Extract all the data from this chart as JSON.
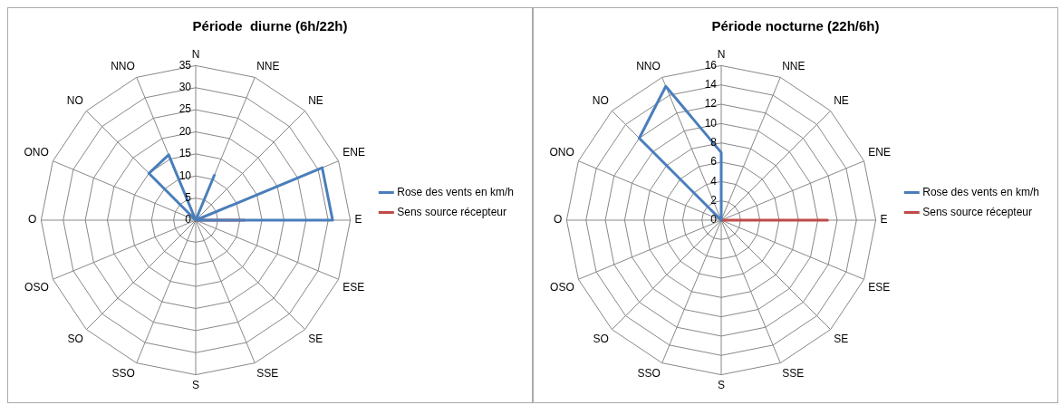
{
  "chart_data": [
    {
      "type": "radar",
      "title": "Période  diurne (6h/22h)",
      "categories": [
        "N",
        "NNE",
        "NE",
        "ENE",
        "E",
        "ESE",
        "SE",
        "SSE",
        "S",
        "SSO",
        "SO",
        "OSO",
        "O",
        "ONO",
        "NO",
        "NNO"
      ],
      "series": [
        {
          "name": "Rose des vents en km/h",
          "color": "#4a7ebb",
          "values": [
            0,
            11,
            0,
            31,
            31,
            0,
            0,
            0,
            0,
            0,
            0,
            0,
            0,
            0,
            15,
            16
          ]
        },
        {
          "name": "Sens source récepteur",
          "color": "#be4b48",
          "values": [
            0,
            0,
            0,
            0,
            11,
            0,
            0,
            0,
            0,
            0,
            0,
            0,
            0,
            0,
            0,
            0
          ]
        }
      ],
      "ylim": [
        0,
        35
      ],
      "yticks": [
        0,
        5,
        10,
        15,
        20,
        25,
        30,
        35
      ],
      "legend": "right",
      "marker": "none",
      "grid": true
    },
    {
      "type": "radar",
      "title": "Période nocturne (22h/6h)",
      "categories": [
        "N",
        "NNE",
        "NE",
        "ENE",
        "E",
        "ESE",
        "SE",
        "SSE",
        "S",
        "SSO",
        "SO",
        "OSO",
        "O",
        "ONO",
        "NO",
        "NNO"
      ],
      "series": [
        {
          "name": "Rose des vents en km/h",
          "color": "#4a7ebb",
          "values": [
            7,
            0,
            0,
            0,
            0,
            0,
            0,
            0,
            0,
            0,
            0,
            0,
            0,
            0,
            12,
            15
          ]
        },
        {
          "name": "Sens source récepteur",
          "color": "#be4b48",
          "values": [
            0,
            0,
            0,
            0,
            11,
            0,
            0,
            0,
            0,
            0,
            0,
            0,
            0,
            0,
            0,
            0
          ]
        }
      ],
      "ylim": [
        0,
        16
      ],
      "yticks": [
        0,
        2,
        4,
        6,
        8,
        10,
        12,
        14,
        16
      ],
      "legend": "right",
      "marker": "none",
      "grid": true
    }
  ]
}
